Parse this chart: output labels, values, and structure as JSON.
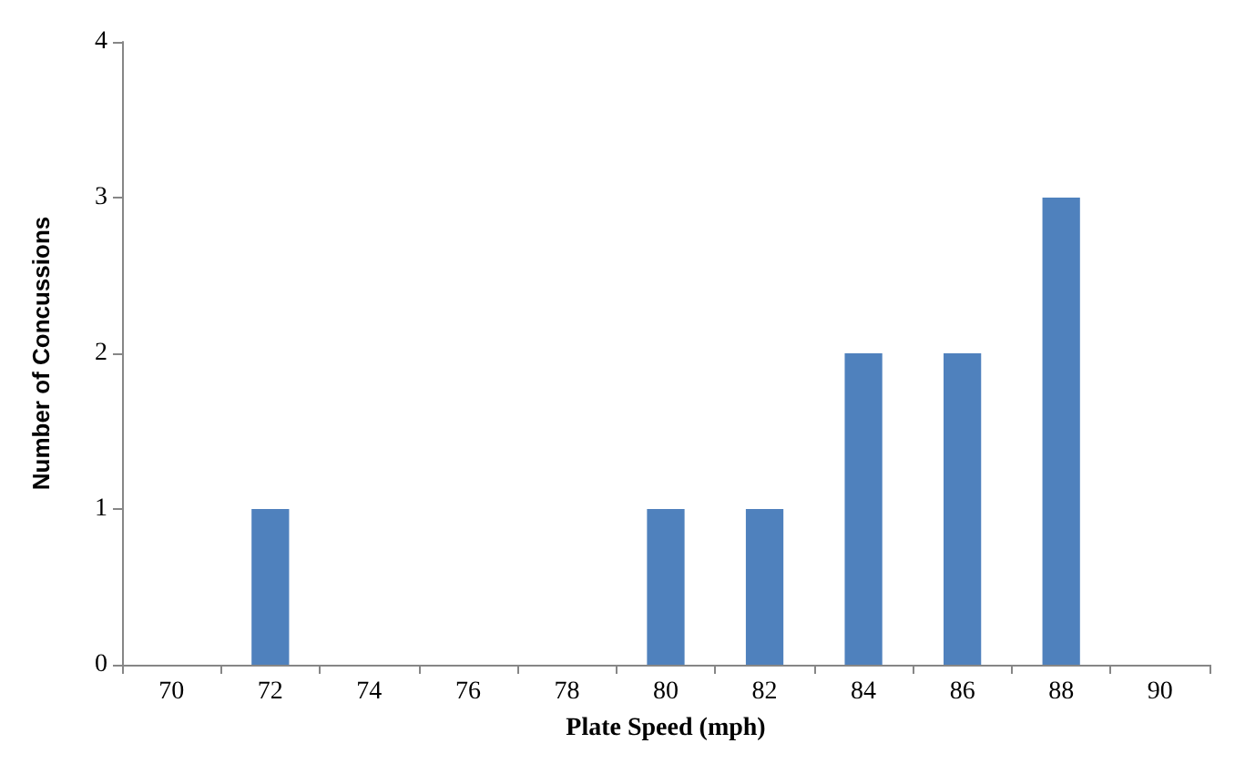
{
  "chart_data": {
    "type": "bar",
    "xlabel": "Plate Speed (mph)",
    "ylabel": "Number of Concussions",
    "categories": [
      "70",
      "72",
      "74",
      "76",
      "78",
      "80",
      "82",
      "84",
      "86",
      "88",
      "90"
    ],
    "values": [
      0,
      1,
      0,
      0,
      0,
      1,
      1,
      2,
      2,
      3,
      0
    ],
    "color": "#4f81bd",
    "ylim": [
      0,
      4
    ],
    "yticks": [
      0,
      1,
      2,
      3,
      4
    ],
    "grid": false
  }
}
